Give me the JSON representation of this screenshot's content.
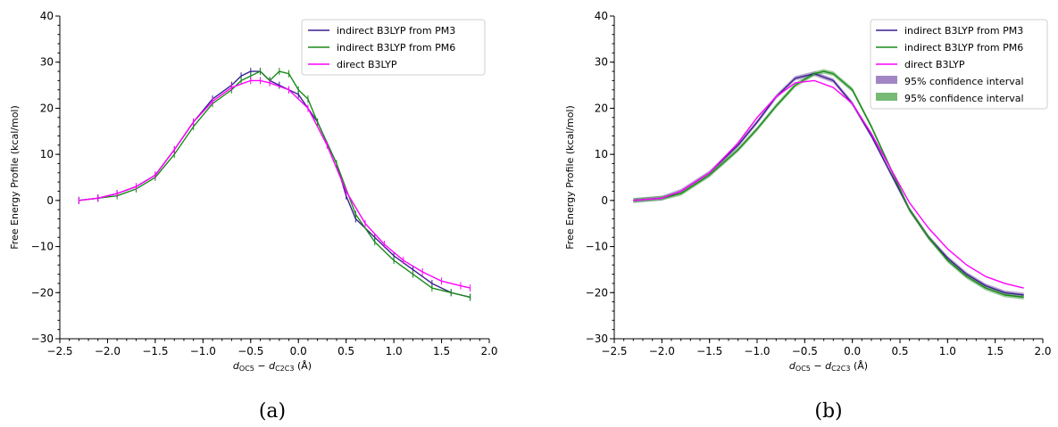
{
  "chart_data": [
    {
      "type": "line",
      "panel_label": "(a)",
      "xlabel": "d_OC5 − d_C2C3 (Å)",
      "ylabel": "Free Energy Profile (kcal/mol)",
      "xlim": [
        -2.5,
        2.0
      ],
      "ylim": [
        -30,
        40
      ],
      "xticks": [
        "−2.5",
        "−2.0",
        "−1.5",
        "−1.0",
        "−0.5",
        "0.0",
        "0.5",
        "1.0",
        "1.5",
        "2.0"
      ],
      "yticks": [
        "−30",
        "−20",
        "−10",
        "0",
        "10",
        "20",
        "30",
        "40"
      ],
      "legend_position": "top-right",
      "grid": false,
      "series": [
        {
          "name": "indirect B3LYP from PM3",
          "color": "#3b1f8f",
          "x": [
            -2.3,
            -2.1,
            -1.9,
            -1.7,
            -1.5,
            -1.3,
            -1.1,
            -0.9,
            -0.7,
            -0.6,
            -0.5,
            -0.4,
            -0.3,
            -0.2,
            -0.1,
            0.0,
            0.2,
            0.4,
            0.5,
            0.6,
            0.8,
            1.0,
            1.2,
            1.4,
            1.6,
            1.8
          ],
          "values": [
            0,
            0.5,
            1.5,
            3,
            5.5,
            11,
            17,
            22,
            25,
            27,
            28,
            28,
            26,
            25,
            24,
            23,
            17,
            8,
            1,
            -4,
            -8,
            -12,
            -15,
            -18,
            -20,
            -21
          ]
        },
        {
          "name": "indirect B3LYP from PM6",
          "color": "#1a8a1a",
          "x": [
            -2.3,
            -2.1,
            -1.9,
            -1.7,
            -1.5,
            -1.3,
            -1.1,
            -0.9,
            -0.7,
            -0.6,
            -0.5,
            -0.4,
            -0.3,
            -0.2,
            -0.1,
            0.0,
            0.1,
            0.2,
            0.4,
            0.6,
            0.8,
            1.0,
            1.2,
            1.4,
            1.6,
            1.8
          ],
          "values": [
            0,
            0.5,
            1,
            2.5,
            5,
            10,
            16,
            21,
            24,
            26,
            27,
            28,
            26,
            28,
            27.5,
            24,
            22,
            17,
            8,
            -3,
            -9,
            -13,
            -16,
            -19,
            -20,
            -21
          ]
        },
        {
          "name": "direct B3LYP",
          "color": "#ff00ff",
          "x": [
            -2.3,
            -2.1,
            -1.9,
            -1.7,
            -1.5,
            -1.3,
            -1.1,
            -0.9,
            -0.7,
            -0.5,
            -0.4,
            -0.3,
            -0.1,
            0.1,
            0.3,
            0.5,
            0.7,
            0.9,
            1.1,
            1.3,
            1.5,
            1.7,
            1.8
          ],
          "values": [
            0,
            0.5,
            1.5,
            3,
            5.5,
            11,
            17,
            21.5,
            24.5,
            26,
            26,
            25.5,
            24,
            20,
            12,
            2,
            -5,
            -9.5,
            -13,
            -15.5,
            -17.5,
            -18.5,
            -19
          ]
        }
      ]
    },
    {
      "type": "line",
      "panel_label": "(b)",
      "xlabel": "d_OC5 − d_C2C3 (Å)",
      "ylabel": "Free Energy Profile (kcal/mol)",
      "xlim": [
        -2.5,
        2.0
      ],
      "ylim": [
        -30,
        40
      ],
      "xticks": [
        "−2.5",
        "−2.0",
        "−1.5",
        "−1.0",
        "−0.5",
        "0.0",
        "0.5",
        "1.0",
        "1.5",
        "2.0"
      ],
      "yticks": [
        "−30",
        "−20",
        "−10",
        "0",
        "10",
        "20",
        "30",
        "40"
      ],
      "legend_position": "top-right",
      "grid": false,
      "series": [
        {
          "name": "indirect B3LYP from PM3",
          "color": "#3b1f8f",
          "x": [
            -2.3,
            -2.0,
            -1.8,
            -1.5,
            -1.2,
            -1.0,
            -0.8,
            -0.6,
            -0.4,
            -0.2,
            0.0,
            0.2,
            0.4,
            0.6,
            0.8,
            1.0,
            1.2,
            1.4,
            1.6,
            1.8
          ],
          "values": [
            0,
            0.5,
            2,
            6,
            12,
            17,
            22.5,
            26.5,
            27.5,
            26,
            21,
            14,
            6,
            -2,
            -8,
            -12.5,
            -16,
            -18.5,
            -20,
            -20.5
          ]
        },
        {
          "name": "indirect B3LYP from PM6",
          "color": "#1a8a1a",
          "x": [
            -2.3,
            -2.0,
            -1.8,
            -1.5,
            -1.2,
            -1.0,
            -0.8,
            -0.6,
            -0.4,
            -0.3,
            -0.2,
            0.0,
            0.2,
            0.4,
            0.6,
            0.8,
            1.0,
            1.2,
            1.4,
            1.6,
            1.8
          ],
          "values": [
            0,
            0.5,
            1.5,
            5.5,
            11,
            15.5,
            20.5,
            25,
            27.5,
            28,
            27.5,
            24,
            16,
            7,
            -2,
            -8,
            -13,
            -16.5,
            -19,
            -20.5,
            -21
          ]
        },
        {
          "name": "direct B3LYP",
          "color": "#ff00ff",
          "x": [
            -2.3,
            -2.0,
            -1.8,
            -1.5,
            -1.2,
            -1.0,
            -0.8,
            -0.6,
            -0.4,
            -0.2,
            0.0,
            0.2,
            0.4,
            0.6,
            0.8,
            1.0,
            1.2,
            1.4,
            1.6,
            1.8
          ],
          "values": [
            0,
            0.5,
            2,
            6,
            12.5,
            18,
            22.5,
            25.5,
            26,
            24.5,
            21,
            14.5,
            7,
            -0.5,
            -6,
            -10.5,
            -14,
            -16.5,
            -18,
            -19
          ]
        }
      ],
      "bands": [
        {
          "name": "95% confidence interval",
          "color": "#7b52ab"
        },
        {
          "name": "95% confidence interval",
          "color": "#3c9c3c"
        }
      ]
    }
  ]
}
